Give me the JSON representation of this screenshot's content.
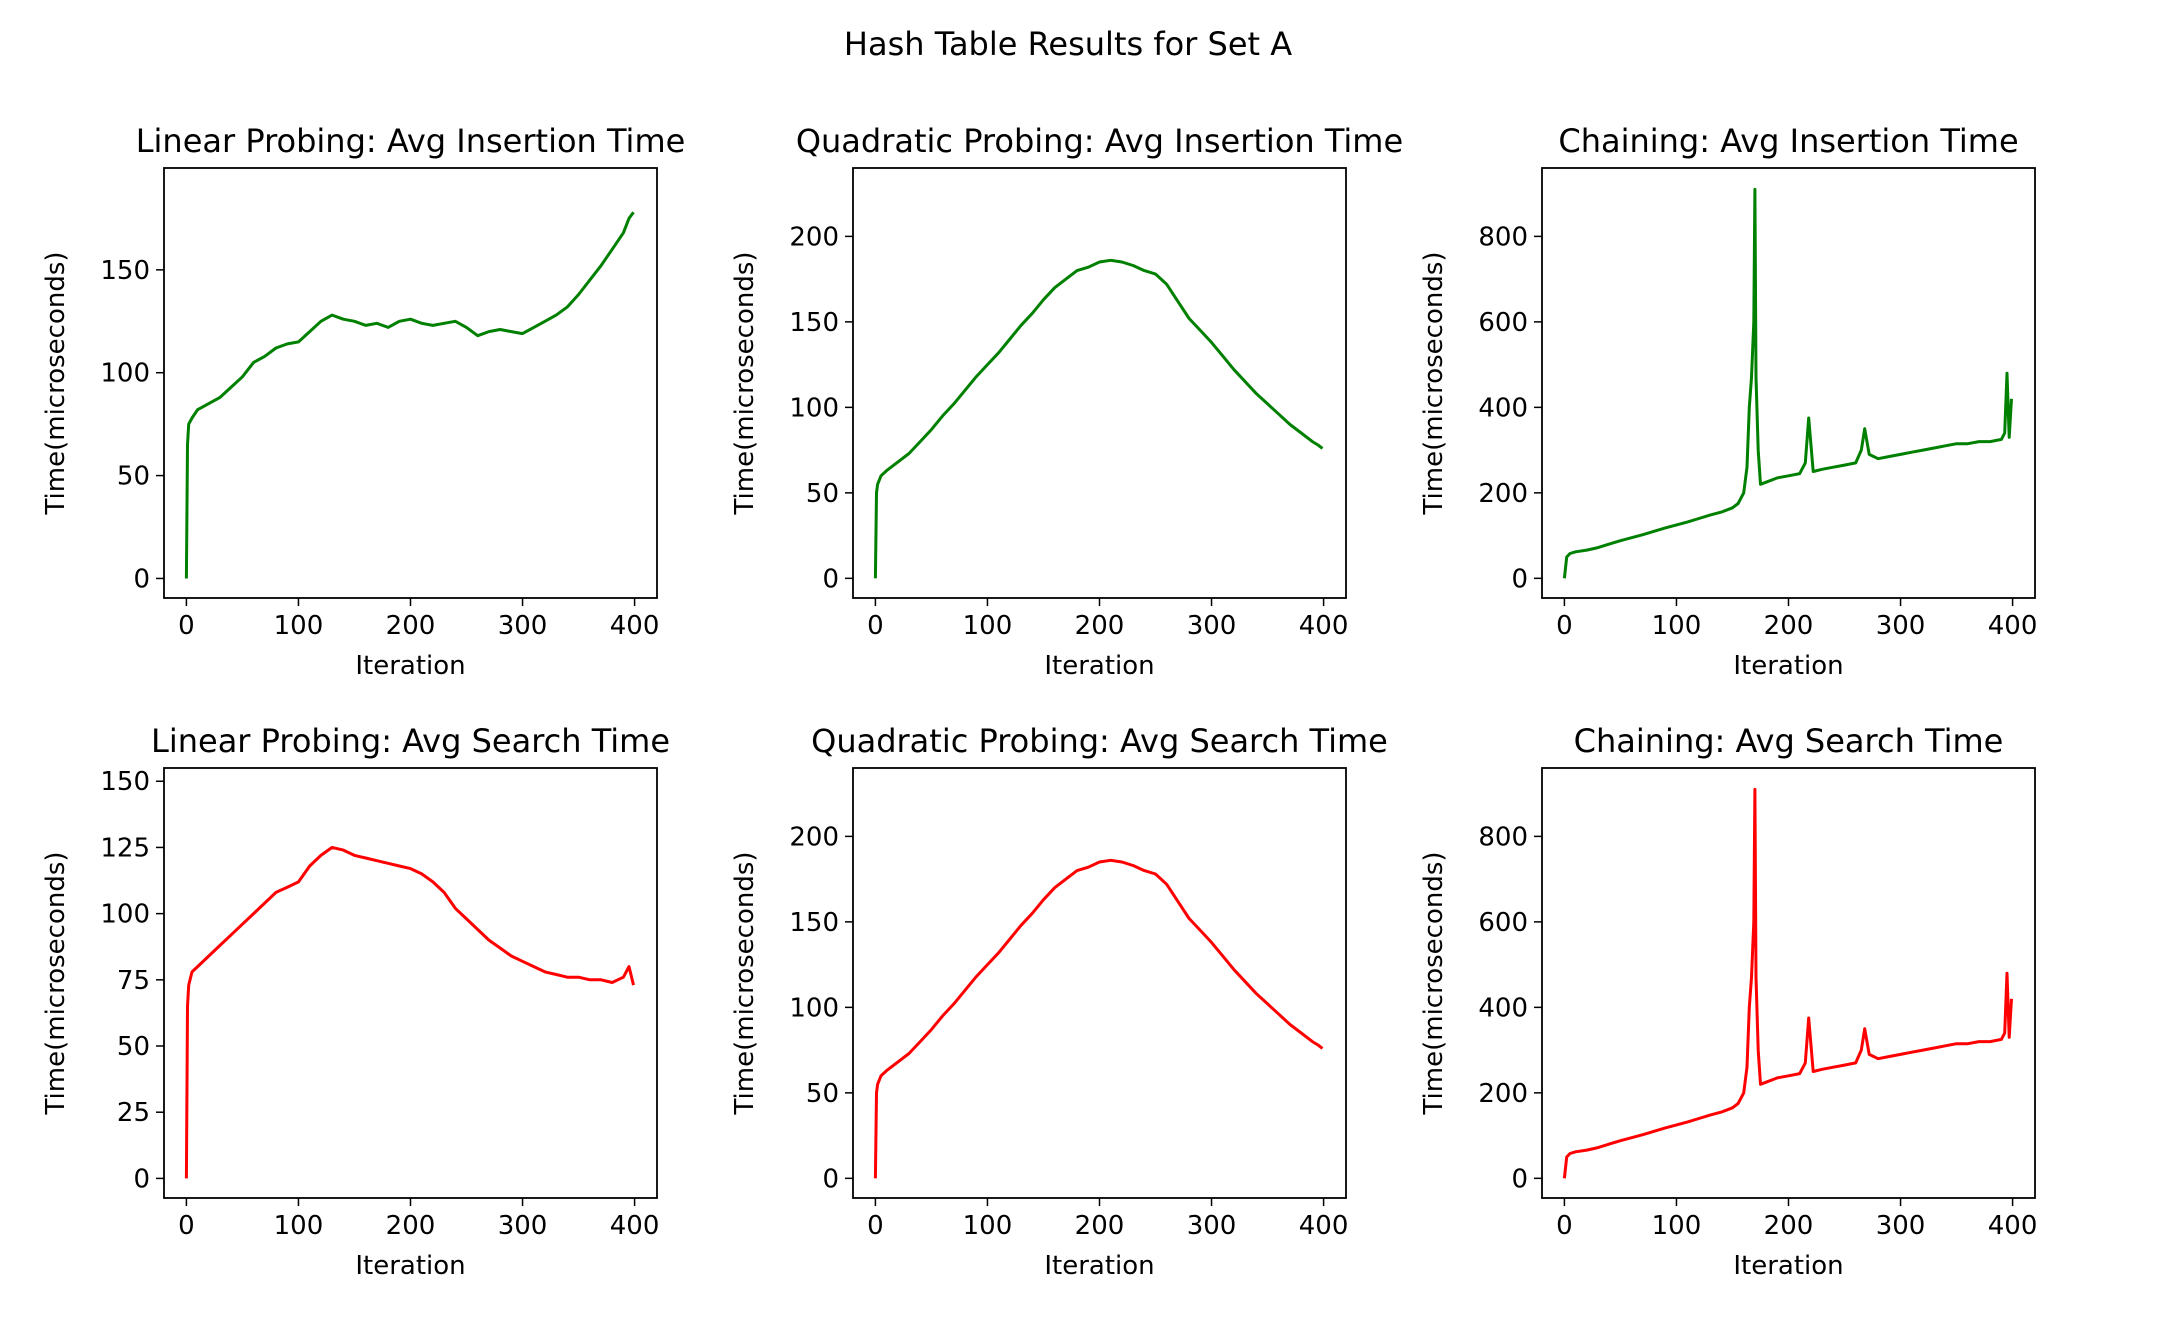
{
  "figure": {
    "suptitle": "Hash Table Results for Set A"
  },
  "chart_data": [
    {
      "type": "line",
      "title": "Linear Probing: Avg Insertion Time",
      "xlabel": "Iteration",
      "ylabel": "Time(microseconds)",
      "color": "#008000",
      "xlim": [
        -20,
        420
      ],
      "ylim": [
        -9.5,
        199.5
      ],
      "xticks": [
        0,
        100,
        200,
        300,
        400
      ],
      "yticks": [
        0,
        50,
        100,
        150
      ],
      "series": [
        {
          "x": [
            0,
            1,
            2,
            5,
            10,
            20,
            30,
            40,
            50,
            60,
            70,
            80,
            90,
            100,
            110,
            120,
            130,
            140,
            150,
            160,
            170,
            180,
            190,
            200,
            210,
            220,
            230,
            240,
            250,
            260,
            270,
            280,
            290,
            300,
            310,
            320,
            330,
            340,
            350,
            360,
            370,
            380,
            390,
            395,
            399
          ],
          "y": [
            0,
            65,
            75,
            78,
            82,
            85,
            88,
            93,
            98,
            105,
            108,
            112,
            114,
            115,
            120,
            125,
            128,
            126,
            125,
            123,
            124,
            122,
            125,
            126,
            124,
            123,
            124,
            125,
            122,
            118,
            120,
            121,
            120,
            119,
            122,
            125,
            128,
            132,
            138,
            145,
            152,
            160,
            168,
            175,
            178
          ]
        }
      ]
    },
    {
      "type": "line",
      "title": "Quadratic Probing: Avg Insertion Time",
      "xlabel": "Iteration",
      "ylabel": "Time(microseconds)",
      "color": "#008000",
      "xlim": [
        -20,
        420
      ],
      "ylim": [
        -11.5,
        240
      ],
      "xticks": [
        0,
        100,
        200,
        300,
        400
      ],
      "yticks": [
        0,
        50,
        100,
        150,
        200
      ],
      "series": [
        {
          "x": [
            0,
            1,
            2,
            5,
            10,
            20,
            30,
            40,
            50,
            60,
            70,
            80,
            90,
            100,
            110,
            120,
            130,
            140,
            150,
            160,
            170,
            180,
            190,
            200,
            210,
            220,
            230,
            240,
            250,
            260,
            270,
            280,
            290,
            300,
            310,
            320,
            330,
            340,
            350,
            360,
            370,
            380,
            390,
            395,
            399
          ],
          "y": [
            0,
            50,
            55,
            60,
            63,
            68,
            73,
            80,
            87,
            95,
            102,
            110,
            118,
            125,
            132,
            140,
            148,
            155,
            163,
            170,
            175,
            180,
            182,
            185,
            186,
            185,
            183,
            180,
            178,
            172,
            162,
            152,
            145,
            138,
            130,
            122,
            115,
            108,
            102,
            96,
            90,
            85,
            80,
            78,
            76
          ]
        }
      ]
    },
    {
      "type": "line",
      "title": "Chaining: Avg Insertion Time",
      "xlabel": "Iteration",
      "ylabel": "Time(microseconds)",
      "color": "#008000",
      "xlim": [
        -20,
        420
      ],
      "ylim": [
        -46,
        960
      ],
      "xticks": [
        0,
        100,
        200,
        300,
        400
      ],
      "yticks": [
        0,
        200,
        400,
        600,
        800
      ],
      "series": [
        {
          "x": [
            0,
            2,
            5,
            10,
            20,
            30,
            40,
            50,
            60,
            70,
            80,
            90,
            100,
            110,
            120,
            130,
            140,
            150,
            155,
            160,
            163,
            165,
            167,
            169,
            170,
            171,
            173,
            175,
            180,
            190,
            200,
            210,
            215,
            218,
            222,
            230,
            240,
            250,
            260,
            265,
            268,
            272,
            280,
            290,
            300,
            310,
            320,
            330,
            340,
            350,
            360,
            370,
            380,
            390,
            393,
            395,
            397,
            399
          ],
          "y": [
            0,
            50,
            58,
            62,
            66,
            72,
            80,
            88,
            95,
            102,
            110,
            118,
            125,
            132,
            140,
            148,
            155,
            165,
            175,
            200,
            260,
            400,
            470,
            600,
            910,
            470,
            300,
            220,
            225,
            235,
            240,
            245,
            270,
            375,
            250,
            255,
            260,
            265,
            270,
            300,
            350,
            290,
            280,
            285,
            290,
            295,
            300,
            305,
            310,
            315,
            315,
            320,
            320,
            325,
            340,
            480,
            330,
            420
          ]
        }
      ]
    },
    {
      "type": "line",
      "title": "Linear Probing: Avg Search Time",
      "xlabel": "Iteration",
      "ylabel": "Time(microseconds)",
      "color": "#ff0000",
      "xlim": [
        -20,
        420
      ],
      "ylim": [
        -7.4,
        155
      ],
      "xticks": [
        0,
        100,
        200,
        300,
        400
      ],
      "yticks": [
        0,
        25,
        50,
        75,
        100,
        125,
        150
      ],
      "series": [
        {
          "x": [
            0,
            1,
            2,
            5,
            10,
            20,
            30,
            40,
            50,
            60,
            70,
            80,
            90,
            100,
            110,
            120,
            130,
            140,
            150,
            160,
            170,
            180,
            190,
            200,
            210,
            220,
            230,
            240,
            250,
            260,
            270,
            280,
            290,
            300,
            310,
            320,
            330,
            340,
            350,
            360,
            370,
            380,
            390,
            395,
            399
          ],
          "y": [
            0,
            65,
            73,
            78,
            80,
            84,
            88,
            92,
            96,
            100,
            104,
            108,
            110,
            112,
            118,
            122,
            125,
            124,
            122,
            121,
            120,
            119,
            118,
            117,
            115,
            112,
            108,
            102,
            98,
            94,
            90,
            87,
            84,
            82,
            80,
            78,
            77,
            76,
            76,
            75,
            75,
            74,
            76,
            80,
            73
          ]
        }
      ]
    },
    {
      "type": "line",
      "title": "Quadratic Probing: Avg Search Time",
      "xlabel": "Iteration",
      "ylabel": "Time(microseconds)",
      "color": "#ff0000",
      "xlim": [
        -20,
        420
      ],
      "ylim": [
        -11.5,
        240
      ],
      "xticks": [
        0,
        100,
        200,
        300,
        400
      ],
      "yticks": [
        0,
        50,
        100,
        150,
        200
      ],
      "series": [
        {
          "x": [
            0,
            1,
            2,
            5,
            10,
            20,
            30,
            40,
            50,
            60,
            70,
            80,
            90,
            100,
            110,
            120,
            130,
            140,
            150,
            160,
            170,
            180,
            190,
            200,
            210,
            220,
            230,
            240,
            250,
            260,
            270,
            280,
            290,
            300,
            310,
            320,
            330,
            340,
            350,
            360,
            370,
            380,
            390,
            395,
            399
          ],
          "y": [
            0,
            50,
            55,
            60,
            63,
            68,
            73,
            80,
            87,
            95,
            102,
            110,
            118,
            125,
            132,
            140,
            148,
            155,
            163,
            170,
            175,
            180,
            182,
            185,
            186,
            185,
            183,
            180,
            178,
            172,
            162,
            152,
            145,
            138,
            130,
            122,
            115,
            108,
            102,
            96,
            90,
            85,
            80,
            78,
            76
          ]
        }
      ]
    },
    {
      "type": "line",
      "title": "Chaining: Avg Search Time",
      "xlabel": "Iteration",
      "ylabel": "Time(microseconds)",
      "color": "#ff0000",
      "xlim": [
        -20,
        420
      ],
      "ylim": [
        -46,
        960
      ],
      "xticks": [
        0,
        100,
        200,
        300,
        400
      ],
      "yticks": [
        0,
        200,
        400,
        600,
        800
      ],
      "series": [
        {
          "x": [
            0,
            2,
            5,
            10,
            20,
            30,
            40,
            50,
            60,
            70,
            80,
            90,
            100,
            110,
            120,
            130,
            140,
            150,
            155,
            160,
            163,
            165,
            167,
            169,
            170,
            171,
            173,
            175,
            180,
            190,
            200,
            210,
            215,
            218,
            222,
            230,
            240,
            250,
            260,
            265,
            268,
            272,
            280,
            290,
            300,
            310,
            320,
            330,
            340,
            350,
            360,
            370,
            380,
            390,
            393,
            395,
            397,
            399
          ],
          "y": [
            0,
            50,
            58,
            62,
            66,
            72,
            80,
            88,
            95,
            102,
            110,
            118,
            125,
            132,
            140,
            148,
            155,
            165,
            175,
            200,
            260,
            400,
            470,
            600,
            910,
            470,
            300,
            220,
            225,
            235,
            240,
            245,
            270,
            375,
            250,
            255,
            260,
            265,
            270,
            300,
            350,
            290,
            280,
            285,
            290,
            295,
            300,
            305,
            310,
            315,
            315,
            320,
            320,
            325,
            340,
            480,
            330,
            420
          ]
        }
      ]
    }
  ]
}
